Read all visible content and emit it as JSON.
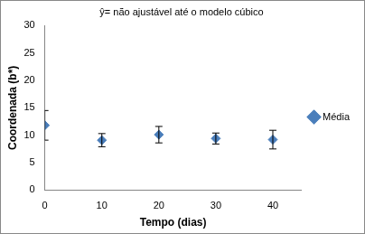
{
  "chart_data": {
    "type": "scatter",
    "title": "ŷ= não ajustável até o modelo cúbico",
    "x_label": "Tempo (dias)",
    "y_label": "Coordenada (b*)",
    "x": [
      0,
      10,
      20,
      30,
      40
    ],
    "series": [
      {
        "name": "Média",
        "color": "#4a7ebb",
        "marker": "diamond",
        "values": [
          11.8,
          9.1,
          10.1,
          9.4,
          9.2
        ],
        "errors": [
          2.7,
          1.2,
          1.5,
          1.0,
          1.7
        ]
      }
    ],
    "xlim": [
      0,
      45
    ],
    "xticks": [
      0,
      10,
      20,
      30,
      40
    ],
    "ylim": [
      0,
      30
    ],
    "yticks": [
      0,
      5,
      10,
      15,
      20,
      25,
      30
    ],
    "grid": false,
    "legend": "right"
  }
}
